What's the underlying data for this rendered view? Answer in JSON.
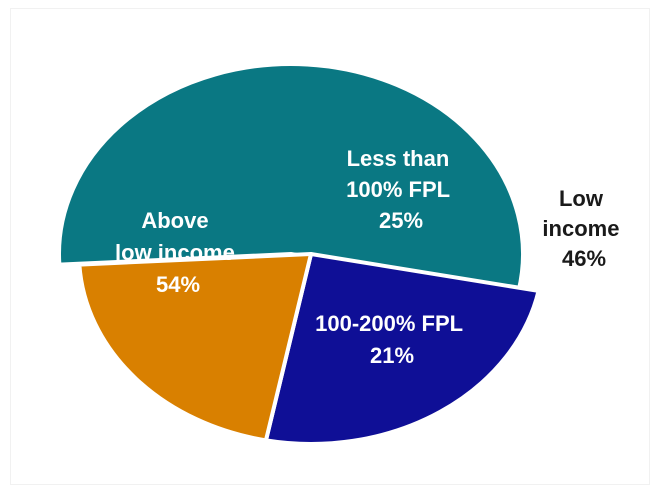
{
  "chart_data": {
    "type": "pie",
    "title": "",
    "slices": [
      {
        "id": "above",
        "label_lines": [
          "Above",
          "low income",
          "54%"
        ],
        "value": 54,
        "color": "#0a7883"
      },
      {
        "id": "less100",
        "label_lines": [
          "Less than",
          "100% FPL",
          "25%"
        ],
        "value": 25,
        "color": "#0f0f96"
      },
      {
        "id": "fpl100200",
        "label_lines": [
          "100-200% FPL",
          "21%"
        ],
        "value": 21,
        "color": "#d98000"
      }
    ],
    "annotation": {
      "label_lines": [
        "Low",
        "income",
        "46%"
      ],
      "value": 46
    },
    "legend": "none",
    "grid": false
  }
}
